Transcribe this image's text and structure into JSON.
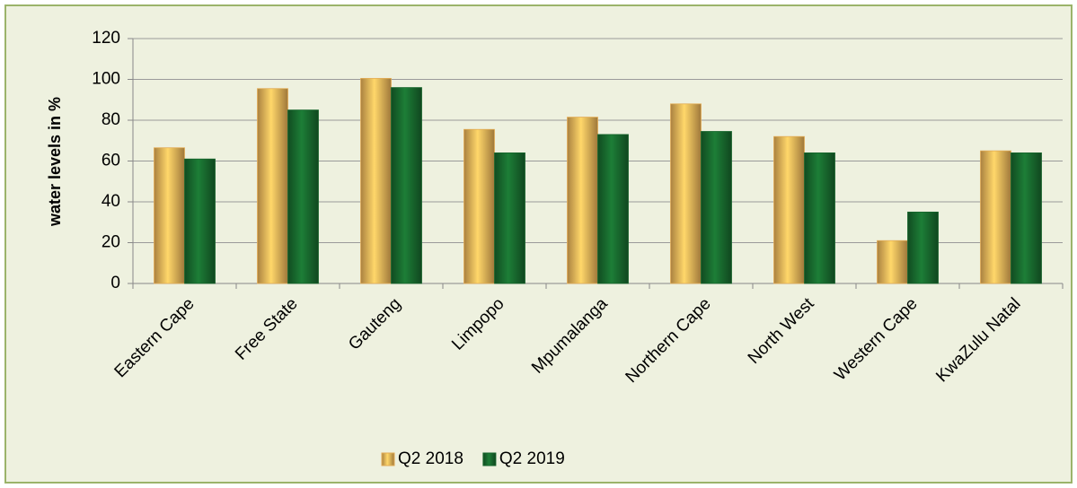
{
  "chart_data": {
    "type": "bar",
    "ylabel": "water levels in %",
    "categories": [
      "Eastern Cape",
      "Free State",
      "Gauteng",
      "Limpopo",
      "Mpumalanga",
      "Northern Cape",
      "North West",
      "Western Cape",
      "KwaZulu Natal"
    ],
    "series": [
      {
        "name": "Q2 2018",
        "color": "#e3ac55",
        "values": [
          66.5,
          95.5,
          100.5,
          75.5,
          81.5,
          88,
          72,
          21,
          65
        ]
      },
      {
        "name": "Q2 2019",
        "color": "#17652c",
        "values": [
          61,
          85,
          96,
          64,
          73,
          74.5,
          64,
          35,
          64
        ]
      }
    ],
    "ylim": [
      0,
      120
    ],
    "yticks": [
      0,
      20,
      40,
      60,
      80,
      100,
      120
    ],
    "grid": true,
    "legend": "bottom"
  }
}
